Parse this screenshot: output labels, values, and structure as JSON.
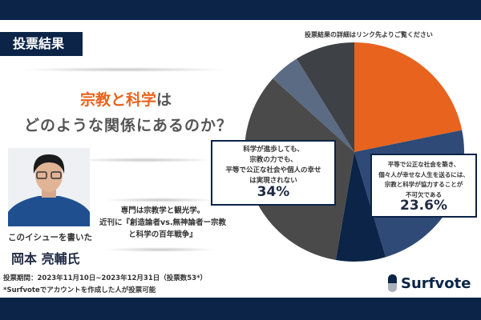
{
  "header": {
    "badge": "投票結果"
  },
  "question": {
    "highlight": "宗教と科学",
    "suffix": "は",
    "line2": "どのような関係にあるのか？"
  },
  "author": {
    "caption": "このイシューを書いた",
    "name": "岡本 亮輔氏",
    "bio_line1": "専門は宗教学と観光学。",
    "bio_line2": "近刊に『創造論者vs.無神論者ー宗教",
    "bio_line3": "と科学の百年戦争』"
  },
  "footer": {
    "period": "投票期間：2023年11月10日~2023年12月31日（投票数53*）",
    "note": "*Surfvoteでアカウントを作成した人が投票可能",
    "logo": "Surfvote"
  },
  "chart_note": "投票結果の詳細はリンク先よりご覧ください",
  "chart_data": {
    "type": "pie",
    "slices": [
      {
        "value": 21.8,
        "color": "#e8631e",
        "label": ""
      },
      {
        "value": 23.6,
        "color": "#2f4a76",
        "label": "平等で公正な社会を築き、個々人が幸せな人生を送るには、宗教と科学が協力することが不可欠である"
      },
      {
        "value": 7.3,
        "color": "#0b2447",
        "label": ""
      },
      {
        "value": 34,
        "color": "#4a4a4a",
        "label": "科学が進歩しても、宗教の力でも、平等で公正な社会や個人の幸せは実現されない"
      },
      {
        "value": 4.5,
        "color": "#5c6b84",
        "label": ""
      },
      {
        "value": 8.8,
        "color": "#3e4146",
        "label": ""
      }
    ],
    "labels": [
      {
        "lines": [
          "科学が進歩しても、",
          "宗教の力でも、",
          "平等で公正な社会や個人の幸せ",
          "は実現されない"
        ],
        "pct": "34%"
      },
      {
        "lines": [
          "平等で公正な社会を築き、",
          "個々人が幸せな人生を送るには、",
          "宗教と科学が協力することが",
          "不可欠である"
        ],
        "pct": "23.6%"
      }
    ]
  }
}
